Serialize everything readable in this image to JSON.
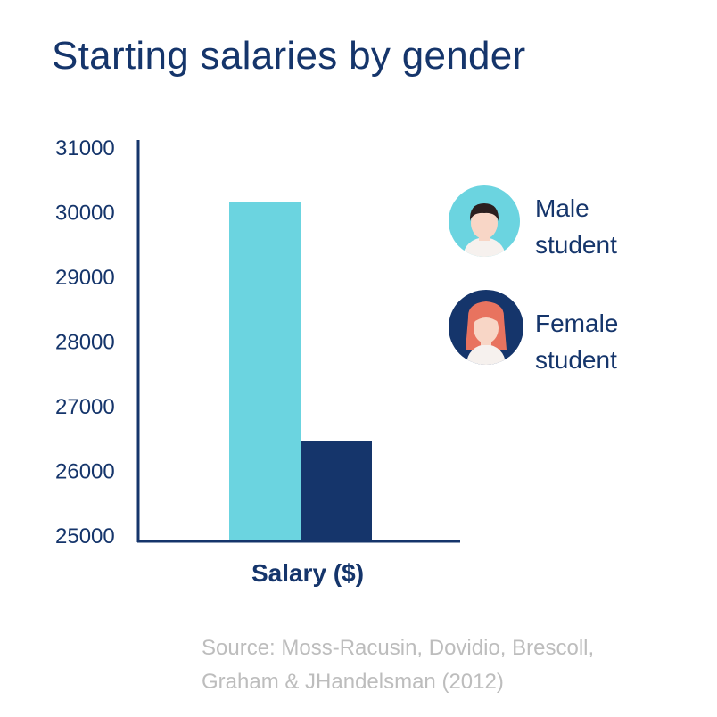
{
  "title": "Starting salaries by gender",
  "chart_data": {
    "type": "bar",
    "title": "Starting salaries by gender",
    "categories": [
      "Salary ($)"
    ],
    "xlabel": "Salary ($)",
    "ylabel": "",
    "ylim": [
      25000,
      31000
    ],
    "yticks": [
      25000,
      26000,
      27000,
      28000,
      29000,
      30000,
      31000
    ],
    "grid": false,
    "legend_position": "right",
    "series": [
      {
        "name": "Male student",
        "legend_lines": [
          "Male",
          "student"
        ],
        "values": [
          30150
        ],
        "color": "#6bd4e0",
        "icon": "male-student-avatar-icon"
      },
      {
        "name": "Female student",
        "legend_lines": [
          "Female",
          "student"
        ],
        "values": [
          26450
        ],
        "color": "#15356b",
        "icon": "female-student-avatar-icon"
      }
    ]
  },
  "source": {
    "line1": "Source: Moss-Racusin, Dovidio, Brescoll,",
    "line2": "Graham & JHandelsman (2012)"
  }
}
